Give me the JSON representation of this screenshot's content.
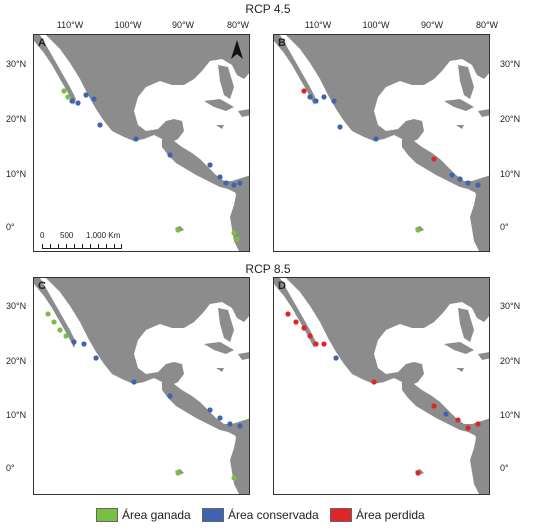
{
  "scenarios": {
    "top": "RCP 4.5",
    "bottom": "RCP 8.5"
  },
  "panels": {
    "a": "A",
    "b": "B",
    "c": "C",
    "d": "D"
  },
  "longitude_labels": [
    "110°W",
    "100°W",
    "90°W",
    "80°W"
  ],
  "latitude_labels": [
    "30°N",
    "20°N",
    "10°N",
    "0°"
  ],
  "scale_bar": {
    "ticks": [
      "0",
      "500",
      "1.000 Km"
    ]
  },
  "legend": [
    {
      "label": "Área ganada",
      "color": "#78c043"
    },
    {
      "label": "Área conservada",
      "color": "#3f63b0"
    },
    {
      "label": "Área perdida",
      "color": "#e02428"
    }
  ],
  "colors": {
    "land": "#8c8c8c",
    "water": "#ffffff",
    "frame": "#333333"
  },
  "icons": {
    "north_arrow": "north-arrow-icon"
  }
}
